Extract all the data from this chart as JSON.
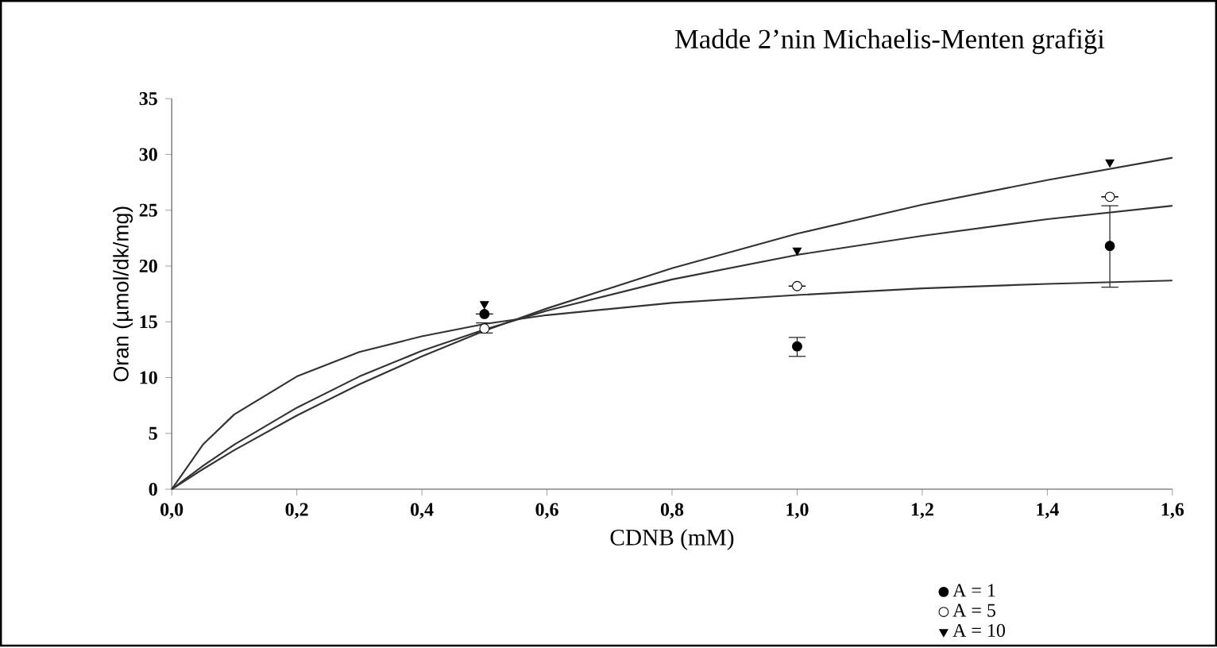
{
  "chart_data": {
    "type": "scatter",
    "title": "Madde 2’nin Michaelis-Menten grafiği",
    "xlabel": "CDNB (mM)",
    "ylabel": "Oran (µmol/dk/mg)",
    "xlim": [
      0,
      1.6
    ],
    "xticks": [
      {
        "value": 0,
        "label": "0,0"
      },
      {
        "value": 0.2,
        "label": "0,2"
      },
      {
        "value": 0.4,
        "label": "0,4"
      },
      {
        "value": 0.6,
        "label": "0,6"
      },
      {
        "value": 0.8,
        "label": "0,8"
      },
      {
        "value": 1.0,
        "label": "1,0"
      },
      {
        "value": 1.2,
        "label": "1,2"
      },
      {
        "value": 1.4,
        "label": "1,4"
      },
      {
        "value": 1.6,
        "label": "1,6"
      }
    ],
    "ylim": [
      0,
      35
    ],
    "yticks": [
      0,
      5,
      10,
      15,
      20,
      25,
      30,
      35
    ],
    "grid": false,
    "legend": "bottom right",
    "series": [
      {
        "name": "A = 1",
        "color": "#000000",
        "marker": "circle",
        "x": [
          0.5,
          1.0,
          1.5
        ],
        "values": [
          15.7,
          12.8,
          21.8
        ],
        "errors": [
          null,
          [
            11.9,
            13.6
          ],
          [
            18.1,
            25.4
          ]
        ]
      },
      {
        "name": "A = 5",
        "color": "#ffffff",
        "marker": "circle",
        "x": [
          0.5,
          1.0,
          1.5
        ],
        "values": [
          14.4,
          18.2,
          26.2
        ],
        "errors": [
          [
            14.0,
            14.9
          ],
          null,
          null
        ]
      },
      {
        "name": "A = 10",
        "color": "#000000",
        "marker": "triangle",
        "x": [
          0.5,
          1.0,
          1.5
        ],
        "values": [
          16.6,
          21.4,
          29.3
        ]
      },
      {
        "type": "line",
        "color": "#333333",
        "marker": "none",
        "x": [
          0,
          0.05,
          0.1,
          0.2,
          0.3,
          0.4,
          0.5,
          0.6,
          0.8,
          1.0,
          1.2,
          1.4,
          1.6
        ],
        "values": [
          0,
          4,
          6.7,
          10.1,
          12.3,
          13.7,
          14.8,
          15.6,
          16.7,
          17.4,
          18,
          18.4,
          18.7
        ]
      },
      {
        "type": "line",
        "color": "#333333",
        "marker": "none",
        "x": [
          0,
          0.05,
          0.1,
          0.2,
          0.3,
          0.4,
          0.5,
          0.6,
          0.8,
          1.0,
          1.2,
          1.4,
          1.6
        ],
        "values": [
          0,
          2.1,
          4,
          7.3,
          10.1,
          12.4,
          14.3,
          16,
          18.8,
          21,
          22.7,
          24.2,
          25.4
        ]
      },
      {
        "type": "line",
        "color": "#333333",
        "marker": "none",
        "x": [
          0,
          0.05,
          0.1,
          0.2,
          0.3,
          0.4,
          0.5,
          0.6,
          0.8,
          1.0,
          1.2,
          1.4,
          1.6
        ],
        "values": [
          0,
          1.8,
          3.5,
          6.6,
          9.4,
          11.9,
          14.2,
          16.2,
          19.8,
          22.9,
          25.5,
          27.7,
          29.7
        ]
      }
    ]
  }
}
